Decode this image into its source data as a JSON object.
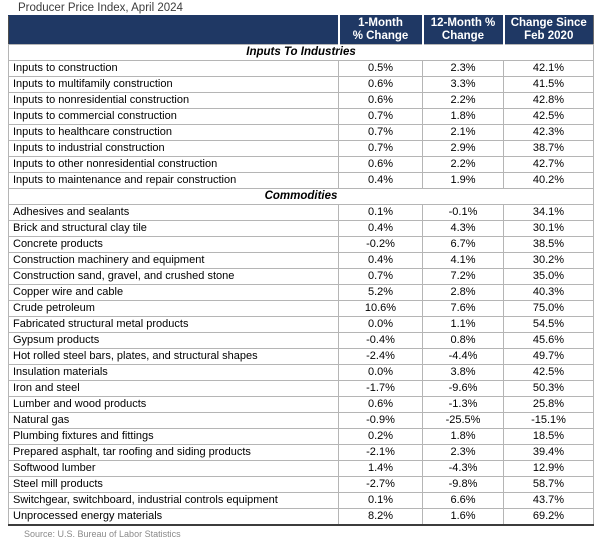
{
  "title": "Producer Price Index, April 2024",
  "source": "Source: U.S. Bureau of Labor Statistics",
  "colors": {
    "header_bg": "#1f3864",
    "header_text": "#ffffff",
    "cell_border": "#b5b5b5",
    "outer_border": "#3c3c3c",
    "title_text": "#3d3d3d",
    "source_text": "#8a8a8a"
  },
  "header": {
    "cols": [
      {
        "label": "1-Month % Change",
        "line1": "1-Month",
        "line2": "% Change"
      },
      {
        "label": "12-Month % Change",
        "line1": "12-Month %",
        "line2": "Change"
      },
      {
        "label": "Change Since Feb 2020",
        "line1": "Change Since",
        "line2": "Feb 2020"
      }
    ]
  },
  "sections": [
    {
      "label": "Inputs To Industries",
      "rows": [
        {
          "label": "Inputs to construction",
          "one_month": "0.5%",
          "twelve_month": "2.3%",
          "since_feb_2020": "42.1%"
        },
        {
          "label": "Inputs to multifamily construction",
          "one_month": "0.6%",
          "twelve_month": "3.3%",
          "since_feb_2020": "41.5%"
        },
        {
          "label": "Inputs to nonresidential construction",
          "one_month": "0.6%",
          "twelve_month": "2.2%",
          "since_feb_2020": "42.8%"
        },
        {
          "label": "Inputs to commercial construction",
          "one_month": "0.7%",
          "twelve_month": "1.8%",
          "since_feb_2020": "42.5%"
        },
        {
          "label": "Inputs to healthcare construction",
          "one_month": "0.7%",
          "twelve_month": "2.1%",
          "since_feb_2020": "42.3%"
        },
        {
          "label": "Inputs to industrial construction",
          "one_month": "0.7%",
          "twelve_month": "2.9%",
          "since_feb_2020": "38.7%"
        },
        {
          "label": "Inputs to other nonresidential construction",
          "one_month": "0.6%",
          "twelve_month": "2.2%",
          "since_feb_2020": "42.7%"
        },
        {
          "label": "Inputs to maintenance and repair construction",
          "one_month": "0.4%",
          "twelve_month": "1.9%",
          "since_feb_2020": "40.2%"
        }
      ]
    },
    {
      "label": "Commodities",
      "rows": [
        {
          "label": "Adhesives and sealants",
          "one_month": "0.1%",
          "twelve_month": "-0.1%",
          "since_feb_2020": "34.1%"
        },
        {
          "label": "Brick and structural clay tile",
          "one_month": "0.4%",
          "twelve_month": "4.3%",
          "since_feb_2020": "30.1%"
        },
        {
          "label": "Concrete products",
          "one_month": "-0.2%",
          "twelve_month": "6.7%",
          "since_feb_2020": "38.5%"
        },
        {
          "label": "Construction machinery and equipment",
          "one_month": "0.4%",
          "twelve_month": "4.1%",
          "since_feb_2020": "30.2%"
        },
        {
          "label": "Construction sand, gravel, and crushed stone",
          "one_month": "0.7%",
          "twelve_month": "7.2%",
          "since_feb_2020": "35.0%"
        },
        {
          "label": "Copper wire and cable",
          "one_month": "5.2%",
          "twelve_month": "2.8%",
          "since_feb_2020": "40.3%"
        },
        {
          "label": "Crude petroleum",
          "one_month": "10.6%",
          "twelve_month": "7.6%",
          "since_feb_2020": "75.0%"
        },
        {
          "label": "Fabricated structural metal products",
          "one_month": "0.0%",
          "twelve_month": "1.1%",
          "since_feb_2020": "54.5%"
        },
        {
          "label": "Gypsum products",
          "one_month": "-0.4%",
          "twelve_month": "0.8%",
          "since_feb_2020": "45.6%"
        },
        {
          "label": "Hot rolled steel bars, plates, and structural shapes",
          "one_month": "-2.4%",
          "twelve_month": "-4.4%",
          "since_feb_2020": "49.7%"
        },
        {
          "label": "Insulation materials",
          "one_month": "0.0%",
          "twelve_month": "3.8%",
          "since_feb_2020": "42.5%"
        },
        {
          "label": "Iron and steel",
          "one_month": "-1.7%",
          "twelve_month": "-9.6%",
          "since_feb_2020": "50.3%"
        },
        {
          "label": "Lumber and wood products",
          "one_month": "0.6%",
          "twelve_month": "-1.3%",
          "since_feb_2020": "25.8%"
        },
        {
          "label": "Natural gas",
          "one_month": "-0.9%",
          "twelve_month": "-25.5%",
          "since_feb_2020": "-15.1%"
        },
        {
          "label": "Plumbing fixtures and fittings",
          "one_month": "0.2%",
          "twelve_month": "1.8%",
          "since_feb_2020": "18.5%"
        },
        {
          "label": "Prepared asphalt, tar roofing and siding products",
          "one_month": "-2.1%",
          "twelve_month": "2.3%",
          "since_feb_2020": "39.4%"
        },
        {
          "label": "Softwood lumber",
          "one_month": "1.4%",
          "twelve_month": "-4.3%",
          "since_feb_2020": "12.9%"
        },
        {
          "label": "Steel mill products",
          "one_month": "-2.7%",
          "twelve_month": "-9.8%",
          "since_feb_2020": "58.7%"
        },
        {
          "label": "Switchgear, switchboard, industrial controls equipment",
          "one_month": "0.1%",
          "twelve_month": "6.6%",
          "since_feb_2020": "43.7%"
        },
        {
          "label": "Unprocessed energy materials",
          "one_month": "8.2%",
          "twelve_month": "1.6%",
          "since_feb_2020": "69.2%"
        }
      ]
    }
  ]
}
